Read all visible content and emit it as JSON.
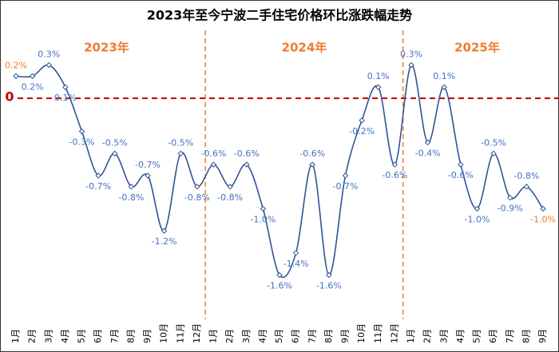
{
  "chart_data": {
    "type": "line",
    "title": "2023年至今宁波二手住宅价格环比涨跌幅走势",
    "categories": [
      "1月",
      "2月",
      "3月",
      "4月",
      "5月",
      "6月",
      "7月",
      "8月",
      "9月",
      "10月",
      "11月",
      "12月",
      "1月",
      "2月",
      "3月",
      "4月",
      "5月",
      "6月",
      "7月",
      "8月",
      "9月",
      "10月",
      "11月",
      "12月",
      "1月",
      "2月",
      "3月",
      "4月",
      "5月",
      "6月",
      "7月",
      "8月",
      "9月"
    ],
    "series": [
      {
        "name": "环比涨跌幅",
        "color": "#2f5597",
        "values": [
          0.2,
          0.2,
          0.3,
          0.1,
          -0.3,
          -0.7,
          -0.5,
          -0.8,
          -0.7,
          -1.2,
          -0.5,
          -0.8,
          -0.6,
          -0.8,
          -0.6,
          -1.0,
          -1.6,
          -1.4,
          -0.6,
          -1.6,
          -0.7,
          -0.2,
          0.1,
          -0.6,
          0.3,
          -0.4,
          0.1,
          -0.6,
          -1.0,
          -0.5,
          -0.9,
          -0.8,
          -1.0
        ],
        "value_labels": [
          "0.2%",
          "0.2%",
          "0.3%",
          "0.1%",
          "-0.3%",
          "-0.7%",
          "-0.5%",
          "-0.8%",
          "-0.7%",
          "-1.2%",
          "-0.5%",
          "-0.8%",
          "-0.6%",
          "-0.8%",
          "-0.6%",
          "-1.0%",
          "-1.6%",
          "-1.4%",
          "-0.6%",
          "-1.6%",
          "-0.7%",
          "-0.2%",
          "0.1%",
          "-0.6%",
          "0.3%",
          "-0.4%",
          "0.1%",
          "-0.6%",
          "-1.0%",
          "-0.5%",
          "-0.9%",
          "-0.8%",
          "-1.0%"
        ],
        "value_label_colors": [
          "#ed7d31",
          "#4472c4",
          "#4472c4",
          "#4472c4",
          "#4472c4",
          "#4472c4",
          "#4472c4",
          "#4472c4",
          "#4472c4",
          "#4472c4",
          "#4472c4",
          "#4472c4",
          "#4472c4",
          "#4472c4",
          "#4472c4",
          "#4472c4",
          "#4472c4",
          "#4472c4",
          "#4472c4",
          "#4472c4",
          "#4472c4",
          "#4472c4",
          "#4472c4",
          "#4472c4",
          "#4472c4",
          "#4472c4",
          "#4472c4",
          "#4472c4",
          "#4472c4",
          "#4472c4",
          "#4472c4",
          "#4472c4",
          "#ed7d31"
        ]
      }
    ],
    "year_labels": [
      "2023年",
      "2024年",
      "2025年"
    ],
    "year_label_color": "#ed7d31",
    "reference_line": {
      "value": 0,
      "label": "0",
      "color": "#c00000"
    },
    "ylim": [
      -2,
      0.6
    ]
  }
}
